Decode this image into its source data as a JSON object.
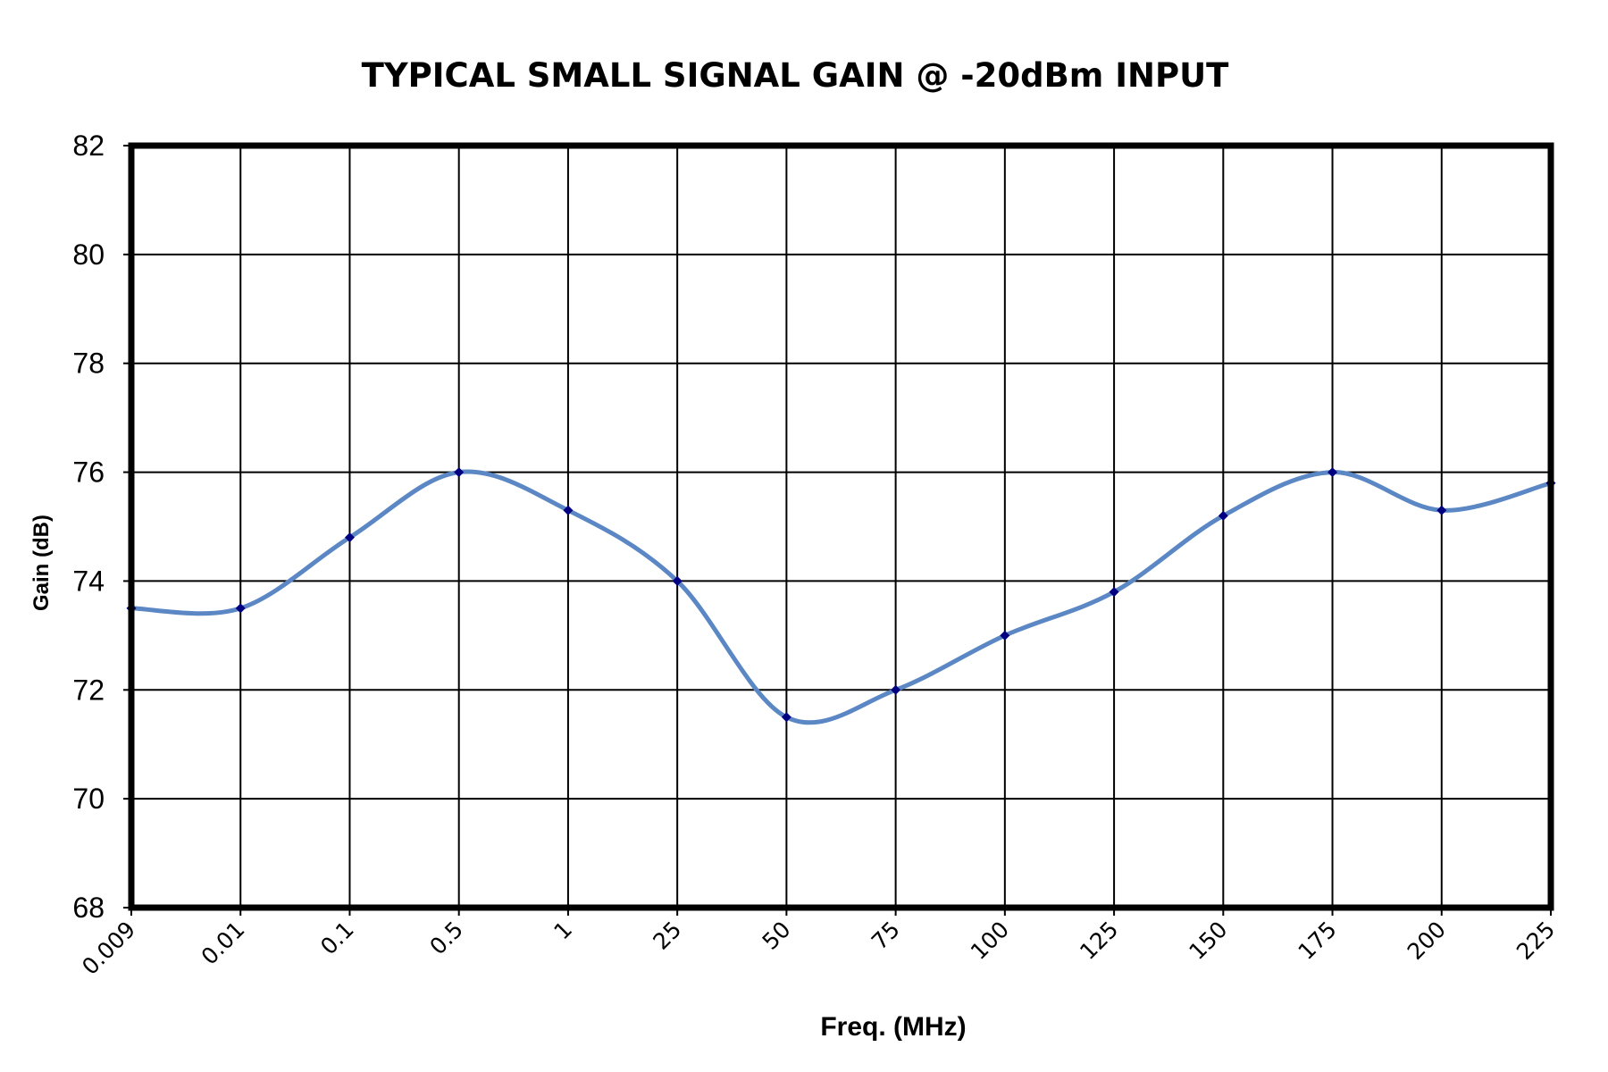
{
  "chart_data": {
    "type": "line",
    "title": "TYPICAL SMALL SIGNAL GAIN @ -20dBm INPUT",
    "xlabel": "Freq. (MHz)",
    "ylabel": "Gain (dB)",
    "categories": [
      "0.009",
      "0.01",
      "0.1",
      "0.5",
      "1",
      "25",
      "50",
      "75",
      "100",
      "125",
      "150",
      "175",
      "200",
      "225"
    ],
    "series": [
      {
        "values": [
          73.5,
          73.5,
          74.8,
          76.0,
          75.3,
          74.0,
          71.5,
          72.0,
          73.0,
          73.8,
          75.2,
          76.0,
          75.3,
          75.8
        ],
        "color": "#5b87c5",
        "marker_color": "#000080"
      }
    ],
    "ylim": [
      68,
      82
    ],
    "yticks": [
      68,
      70,
      72,
      74,
      76,
      78,
      80,
      82
    ],
    "grid": true,
    "legend": "none"
  }
}
